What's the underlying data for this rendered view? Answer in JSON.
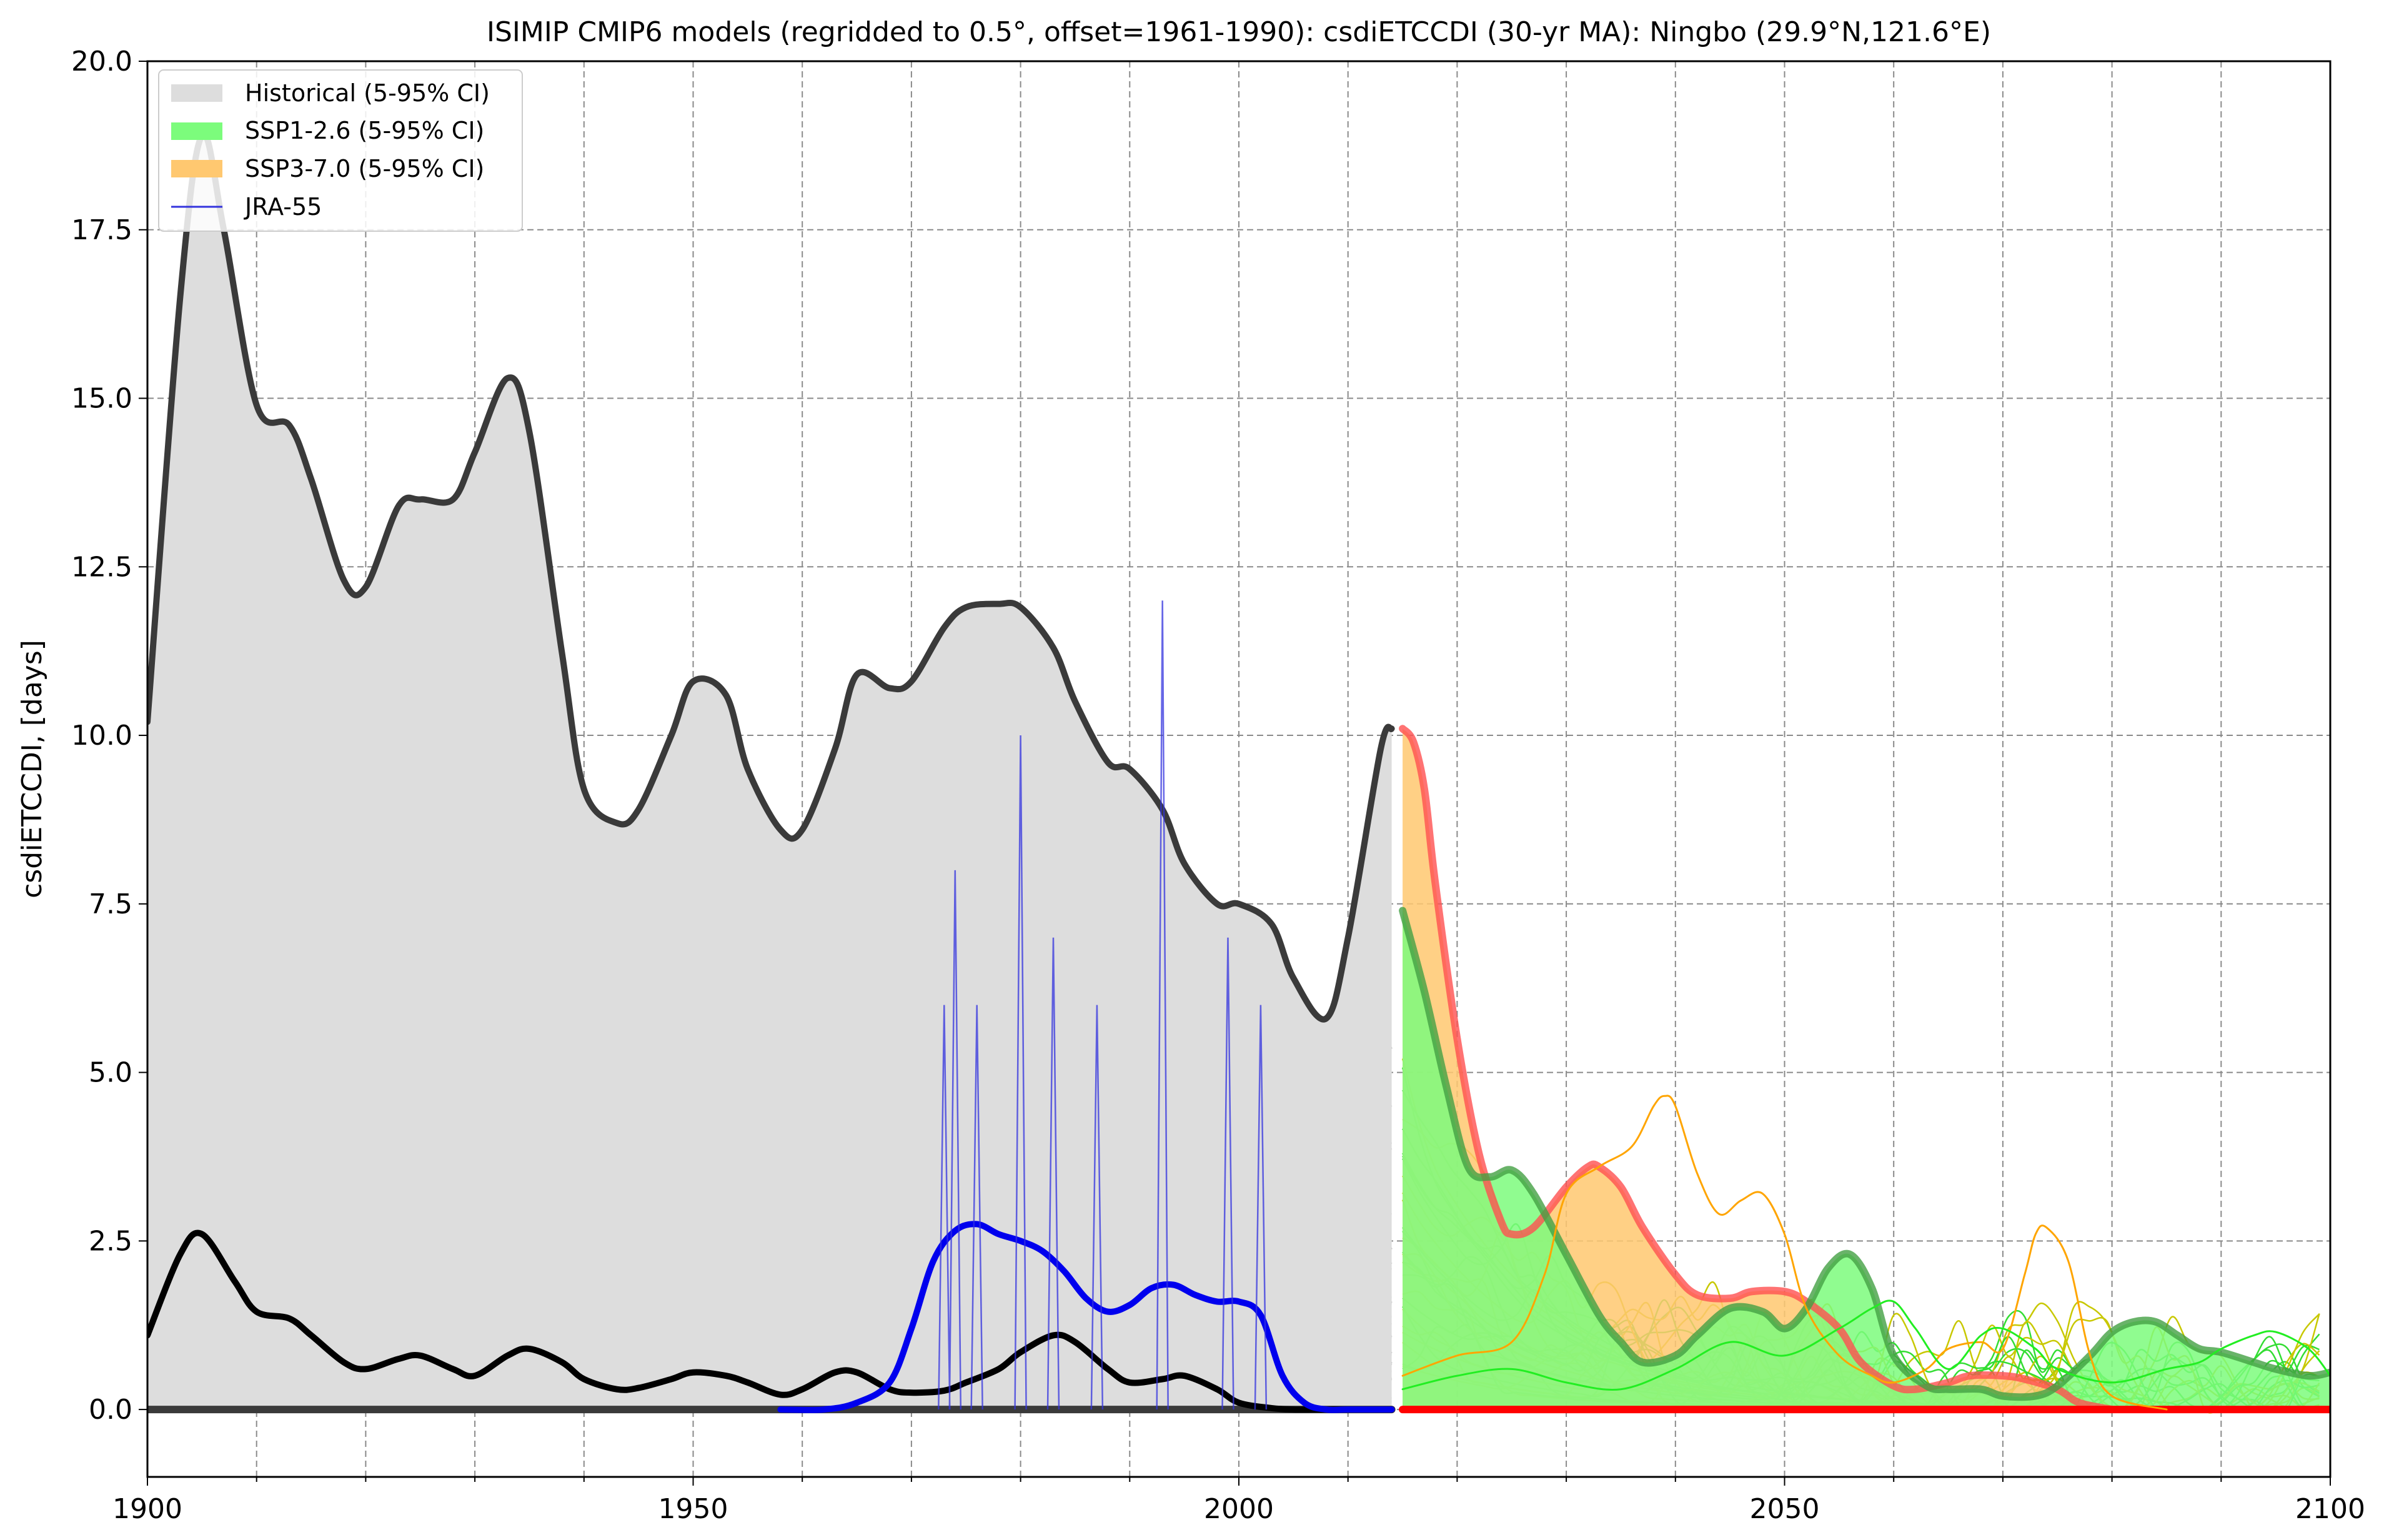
{
  "chart_data": {
    "type": "line",
    "title": "ISIMIP CMIP6 models (regridded to 0.5°, offset=1961-1990): csdiETCCDI (30-yr MA): Ningbo (29.9°N,121.6°E)",
    "xlabel": "",
    "ylabel": "csdiETCCDI, [days]",
    "xlim": [
      1900,
      2100
    ],
    "ylim": [
      -1.0,
      20.0
    ],
    "xticks": [
      1900,
      1950,
      2000,
      2050,
      2100
    ],
    "xtick_labels": [
      "1900",
      "1950",
      "2000",
      "2050",
      "2100"
    ],
    "yticks": [
      0.0,
      2.5,
      5.0,
      7.5,
      10.0,
      12.5,
      15.0,
      17.5,
      20.0
    ],
    "ytick_labels": [
      "0.0",
      "2.5",
      "5.0",
      "7.5",
      "10.0",
      "12.5",
      "15.0",
      "17.5",
      "20.0"
    ],
    "grid": true,
    "legend_position": "top-left",
    "legend": [
      {
        "label": "Historical (5-95% CI)",
        "color": "#dddddd",
        "kind": "patch"
      },
      {
        "label": "SSP1-2.6 (5-95% CI)",
        "color": "#7cfc7c",
        "kind": "patch"
      },
      {
        "label": "SSP3-7.0 (5-95% CI)",
        "color": "#ffc870",
        "kind": "patch"
      },
      {
        "label": "JRA-55",
        "color": "#3333dd",
        "kind": "line"
      }
    ],
    "series": [
      {
        "name": "Historical (5-95% CI)",
        "kind": "band",
        "color": "#dddddd",
        "x": [
          1900,
          1903,
          1905,
          1907,
          1910,
          1913,
          1915,
          1918,
          1920,
          1923,
          1925,
          1928,
          1930,
          1933,
          1935,
          1938,
          1940,
          1943,
          1945,
          1948,
          1950,
          1953,
          1955,
          1958,
          1960,
          1963,
          1965,
          1968,
          1970,
          1973,
          1975,
          1978,
          1980,
          1983,
          1985,
          1988,
          1990,
          1993,
          1995,
          1998,
          2000,
          2003,
          2005,
          2008,
          2010,
          2013,
          2014
        ],
        "lower": [
          0,
          0,
          0,
          0,
          0,
          0,
          0,
          0,
          0,
          0,
          0,
          0,
          0,
          0,
          0,
          0,
          0,
          0,
          0,
          0,
          0,
          0,
          0,
          0,
          0,
          0,
          0,
          0,
          0,
          0,
          0,
          0,
          0,
          0,
          0,
          0,
          0,
          0,
          0,
          0,
          0,
          0,
          0,
          0,
          0,
          0,
          0
        ],
        "upper": [
          10.2,
          16.5,
          18.9,
          17.5,
          14.9,
          14.6,
          13.8,
          12.3,
          12.2,
          13.4,
          13.5,
          13.5,
          14.2,
          15.3,
          14.5,
          11.2,
          9.2,
          8.7,
          8.9,
          10.0,
          10.8,
          10.6,
          9.5,
          8.6,
          8.6,
          9.8,
          10.9,
          10.7,
          10.8,
          11.6,
          11.9,
          11.95,
          11.9,
          11.3,
          10.5,
          9.6,
          9.5,
          8.9,
          8.1,
          7.5,
          7.5,
          7.2,
          6.4,
          5.8,
          7.0,
          9.8,
          10.1
        ]
      },
      {
        "name": "Historical upper",
        "kind": "line",
        "color": "#3a3a3a",
        "x": [
          1900,
          1903,
          1905,
          1907,
          1910,
          1913,
          1915,
          1918,
          1920,
          1923,
          1925,
          1928,
          1930,
          1933,
          1935,
          1938,
          1940,
          1943,
          1945,
          1948,
          1950,
          1953,
          1955,
          1958,
          1960,
          1963,
          1965,
          1968,
          1970,
          1973,
          1975,
          1978,
          1980,
          1983,
          1985,
          1988,
          1990,
          1993,
          1995,
          1998,
          2000,
          2003,
          2005,
          2008,
          2010,
          2013,
          2014
        ],
        "y": [
          10.2,
          16.5,
          18.9,
          17.5,
          14.9,
          14.6,
          13.8,
          12.3,
          12.2,
          13.4,
          13.5,
          13.5,
          14.2,
          15.3,
          14.5,
          11.2,
          9.2,
          8.7,
          8.9,
          10.0,
          10.8,
          10.6,
          9.5,
          8.6,
          8.6,
          9.8,
          10.9,
          10.7,
          10.8,
          11.6,
          11.9,
          11.95,
          11.9,
          11.3,
          10.5,
          9.6,
          9.5,
          8.9,
          8.1,
          7.5,
          7.5,
          7.2,
          6.4,
          5.8,
          7.0,
          9.8,
          10.1
        ]
      },
      {
        "name": "Historical lower",
        "kind": "line",
        "color": "#3a3a3a",
        "x": [
          1900,
          2014
        ],
        "y": [
          0,
          0
        ]
      },
      {
        "name": "Historical median",
        "kind": "line",
        "color": "#000000",
        "x": [
          1900,
          1903,
          1905,
          1908,
          1910,
          1913,
          1915,
          1918,
          1920,
          1923,
          1925,
          1928,
          1930,
          1933,
          1935,
          1938,
          1940,
          1943,
          1945,
          1948,
          1950,
          1953,
          1955,
          1958,
          1960,
          1963,
          1965,
          1968,
          1970,
          1973,
          1975,
          1978,
          1980,
          1983,
          1985,
          1988,
          1990,
          1993,
          1995,
          1998,
          2000,
          2003,
          2005,
          2008,
          2010,
          2014
        ],
        "y": [
          1.1,
          2.3,
          2.6,
          1.9,
          1.45,
          1.35,
          1.1,
          0.7,
          0.6,
          0.75,
          0.8,
          0.6,
          0.5,
          0.8,
          0.9,
          0.7,
          0.45,
          0.3,
          0.32,
          0.45,
          0.55,
          0.5,
          0.4,
          0.22,
          0.3,
          0.55,
          0.55,
          0.3,
          0.25,
          0.28,
          0.4,
          0.6,
          0.85,
          1.1,
          1.0,
          0.6,
          0.4,
          0.45,
          0.5,
          0.3,
          0.1,
          0.02,
          0,
          0,
          0,
          0
        ]
      },
      {
        "name": "JRA-55 (30-yr MA)",
        "kind": "line",
        "color": "#0000ee",
        "x": [
          1958,
          1962,
          1965,
          1968,
          1970,
          1972,
          1974,
          1976,
          1978,
          1980,
          1982,
          1984,
          1986,
          1988,
          1990,
          1992,
          1994,
          1996,
          1998,
          2000,
          2002,
          2004,
          2006,
          2008,
          2010,
          2014
        ],
        "y": [
          0,
          0,
          0.1,
          0.4,
          1.2,
          2.2,
          2.65,
          2.75,
          2.6,
          2.5,
          2.35,
          2.05,
          1.65,
          1.45,
          1.55,
          1.8,
          1.85,
          1.7,
          1.6,
          1.6,
          1.4,
          0.5,
          0.1,
          0,
          0,
          0
        ]
      },
      {
        "name": "JRA-55",
        "kind": "spikes",
        "color": "#3333dd",
        "x": [
          1973,
          1974,
          1976,
          1980,
          1983,
          1987,
          1993,
          1999,
          2002
        ],
        "y": [
          6.0,
          8.0,
          6.0,
          10.0,
          7.0,
          6.0,
          12.0,
          7.0,
          6.0
        ]
      },
      {
        "name": "SSP3-7.0 (5-95% CI)",
        "kind": "band",
        "color": "#ffc870",
        "x": [
          2015,
          2016,
          2017,
          2018,
          2020,
          2022,
          2024,
          2025,
          2027,
          2030,
          2032,
          2033,
          2035,
          2037,
          2040,
          2042,
          2045,
          2047,
          2050,
          2052,
          2055,
          2057,
          2060,
          2062,
          2065,
          2067,
          2070,
          2072,
          2075,
          2077,
          2080
        ],
        "lower": [
          0,
          0,
          0,
          0,
          0,
          0,
          0,
          0,
          0,
          0,
          0,
          0,
          0,
          0,
          0,
          0,
          0,
          0,
          0,
          0,
          0,
          0,
          0,
          0,
          0,
          0,
          0,
          0,
          0,
          0,
          0
        ],
        "upper": [
          10.1,
          9.9,
          9.2,
          7.8,
          5.5,
          3.8,
          2.8,
          2.6,
          2.7,
          3.3,
          3.6,
          3.6,
          3.3,
          2.7,
          2.0,
          1.7,
          1.65,
          1.75,
          1.75,
          1.6,
          1.2,
          0.7,
          0.35,
          0.3,
          0.4,
          0.5,
          0.5,
          0.45,
          0.3,
          0.1,
          0
        ]
      },
      {
        "name": "SSP3-7.0 upper",
        "kind": "line",
        "color": "#ff5050",
        "x": [
          2015,
          2016,
          2017,
          2018,
          2020,
          2022,
          2024,
          2025,
          2027,
          2030,
          2032,
          2033,
          2035,
          2037,
          2040,
          2042,
          2045,
          2047,
          2050,
          2052,
          2055,
          2057,
          2060,
          2062,
          2065,
          2067,
          2070,
          2072,
          2075,
          2077,
          2080
        ],
        "y": [
          10.1,
          9.9,
          9.2,
          7.8,
          5.5,
          3.8,
          2.8,
          2.6,
          2.7,
          3.3,
          3.6,
          3.6,
          3.3,
          2.7,
          2.0,
          1.7,
          1.65,
          1.75,
          1.75,
          1.6,
          1.2,
          0.7,
          0.35,
          0.3,
          0.4,
          0.5,
          0.5,
          0.45,
          0.3,
          0.1,
          0
        ]
      },
      {
        "name": "SSP3-7.0 lower",
        "kind": "line",
        "color": "#ff0000",
        "x": [
          2015,
          2100
        ],
        "y": [
          0,
          0
        ]
      },
      {
        "name": "SSP1-2.6 (5-95% CI)",
        "kind": "band",
        "color": "#7cfc7c",
        "x": [
          2015,
          2017,
          2019,
          2021,
          2023,
          2025,
          2027,
          2030,
          2033,
          2035,
          2037,
          2040,
          2042,
          2045,
          2048,
          2050,
          2052,
          2054,
          2056,
          2058,
          2060,
          2063,
          2065,
          2068,
          2070,
          2073,
          2075,
          2078,
          2080,
          2082,
          2084,
          2086,
          2088,
          2090,
          2093,
          2095,
          2098,
          2100
        ],
        "lower": [
          0,
          0,
          0,
          0,
          0,
          0,
          0,
          0,
          0,
          0,
          0,
          0,
          0,
          0,
          0,
          0,
          0,
          0,
          0,
          0,
          0,
          0,
          0,
          0,
          0,
          0,
          0,
          0,
          0,
          0,
          0,
          0,
          0,
          0,
          0,
          0,
          0,
          0
        ],
        "upper": [
          7.4,
          6.2,
          4.8,
          3.6,
          3.45,
          3.55,
          3.2,
          2.3,
          1.4,
          1.0,
          0.7,
          0.8,
          1.1,
          1.5,
          1.45,
          1.2,
          1.5,
          2.1,
          2.3,
          1.8,
          0.8,
          0.35,
          0.3,
          0.3,
          0.2,
          0.2,
          0.35,
          0.8,
          1.15,
          1.3,
          1.3,
          1.1,
          0.9,
          0.85,
          0.7,
          0.6,
          0.5,
          0.55
        ]
      },
      {
        "name": "SSP1-2.6 upper",
        "kind": "line",
        "color": "#44a044",
        "x": [
          2015,
          2017,
          2019,
          2021,
          2023,
          2025,
          2027,
          2030,
          2033,
          2035,
          2037,
          2040,
          2042,
          2045,
          2048,
          2050,
          2052,
          2054,
          2056,
          2058,
          2060,
          2063,
          2065,
          2068,
          2070,
          2073,
          2075,
          2078,
          2080,
          2082,
          2084,
          2086,
          2088,
          2090,
          2093,
          2095,
          2098,
          2100
        ],
        "y": [
          7.4,
          6.2,
          4.8,
          3.6,
          3.45,
          3.55,
          3.2,
          2.3,
          1.4,
          1.0,
          0.7,
          0.8,
          1.1,
          1.5,
          1.45,
          1.2,
          1.5,
          2.1,
          2.3,
          1.8,
          0.8,
          0.35,
          0.3,
          0.3,
          0.2,
          0.2,
          0.35,
          0.8,
          1.15,
          1.3,
          1.3,
          1.1,
          0.9,
          0.85,
          0.7,
          0.6,
          0.5,
          0.55
        ]
      },
      {
        "name": "SSP3-7.0 member",
        "kind": "line",
        "color": "#ffa500",
        "x": [
          2015,
          2020,
          2025,
          2028,
          2030,
          2033,
          2036,
          2038,
          2039,
          2040,
          2042,
          2044,
          2046,
          2048,
          2050,
          2052,
          2055,
          2058,
          2060,
          2063,
          2065,
          2068,
          2070,
          2072,
          2073,
          2074,
          2076,
          2078,
          2080,
          2085
        ],
        "y": [
          0.5,
          0.8,
          1.0,
          2.0,
          3.2,
          3.6,
          3.9,
          4.5,
          4.65,
          4.5,
          3.5,
          2.9,
          3.1,
          3.2,
          2.6,
          1.5,
          0.8,
          0.5,
          0.4,
          0.6,
          0.9,
          1.0,
          0.9,
          2.0,
          2.6,
          2.7,
          2.2,
          0.8,
          0.2,
          0
        ]
      },
      {
        "name": "SSP1-2.6 member",
        "kind": "line",
        "color": "#22ee22",
        "x": [
          2015,
          2020,
          2025,
          2030,
          2035,
          2040,
          2045,
          2050,
          2055,
          2058,
          2060,
          2062,
          2065,
          2068,
          2070,
          2073,
          2075,
          2080,
          2085,
          2088,
          2090,
          2093,
          2095,
          2098,
          2100
        ],
        "y": [
          0.3,
          0.5,
          0.6,
          0.4,
          0.3,
          0.6,
          1.0,
          0.8,
          1.2,
          1.5,
          1.6,
          1.2,
          0.6,
          1.1,
          1.2,
          0.9,
          0.6,
          0.4,
          0.6,
          0.7,
          0.9,
          1.1,
          1.15,
          0.9,
          0.5
        ]
      }
    ]
  }
}
